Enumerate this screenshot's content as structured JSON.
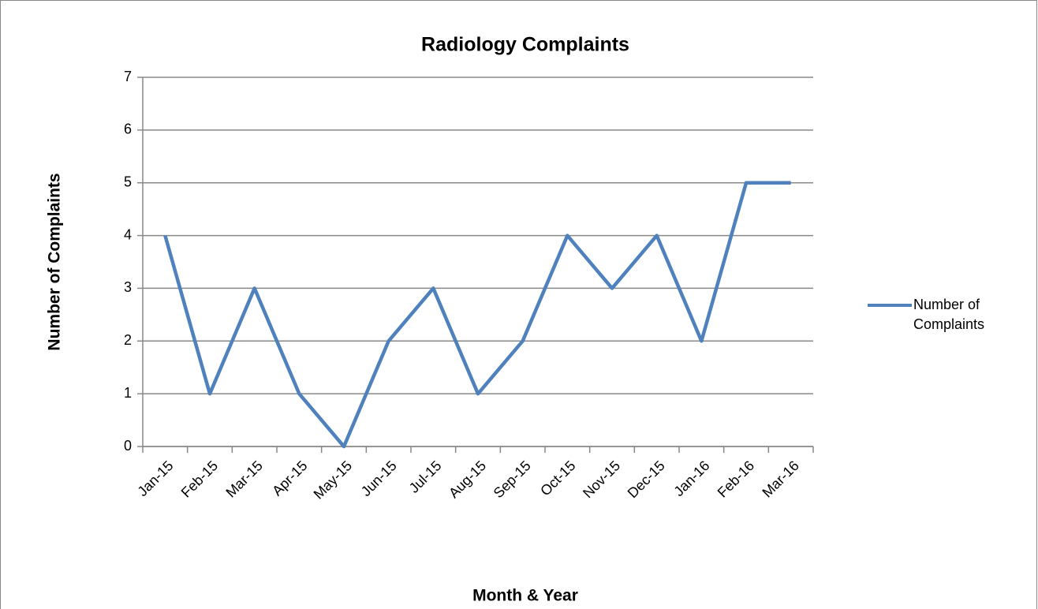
{
  "chart_data": {
    "type": "line",
    "title": "Radiology Complaints",
    "x_label": "Month & Year",
    "y_label": "Number of Complaints",
    "categories": [
      "Jan-15",
      "Feb-15",
      "Mar-15",
      "Apr-15",
      "May-15",
      "Jun-15",
      "Jul-15",
      "Aug-15",
      "Sep-15",
      "Oct-15",
      "Nov-15",
      "Dec-15",
      "Jan-16",
      "Feb-16",
      "Mar-16"
    ],
    "series": [
      {
        "name": "Number of Complaints",
        "color": "#4f81bd",
        "values": [
          4,
          1,
          3,
          1,
          0,
          2,
          3,
          1,
          2,
          4,
          3,
          4,
          2,
          5,
          5
        ]
      }
    ],
    "ylim": [
      0,
      7
    ],
    "yticks": [
      0,
      1,
      2,
      3,
      4,
      5,
      6,
      7
    ],
    "grid": true,
    "legend": "right"
  }
}
